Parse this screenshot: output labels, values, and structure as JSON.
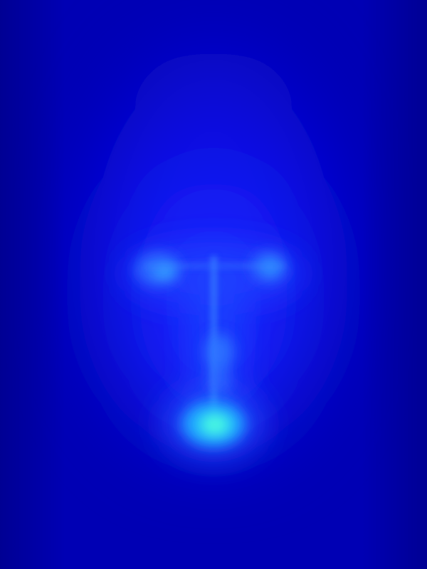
{
  "image": {
    "kind": "heatmap-overlay",
    "colors": {
      "background": "#0000b4",
      "face_glow": "#1414ff",
      "glow_mid": "#2a5cff",
      "hotspot": "#39f2e6",
      "hotspot_edge": "#1ea8ff"
    },
    "regions": [
      {
        "name": "left-eye",
        "intensity": 0.55
      },
      {
        "name": "right-eye",
        "intensity": 0.5
      },
      {
        "name": "nose-bridge",
        "intensity": 0.35
      },
      {
        "name": "nose-tip",
        "intensity": 0.45
      },
      {
        "name": "mouth",
        "intensity": 0.95
      }
    ]
  }
}
